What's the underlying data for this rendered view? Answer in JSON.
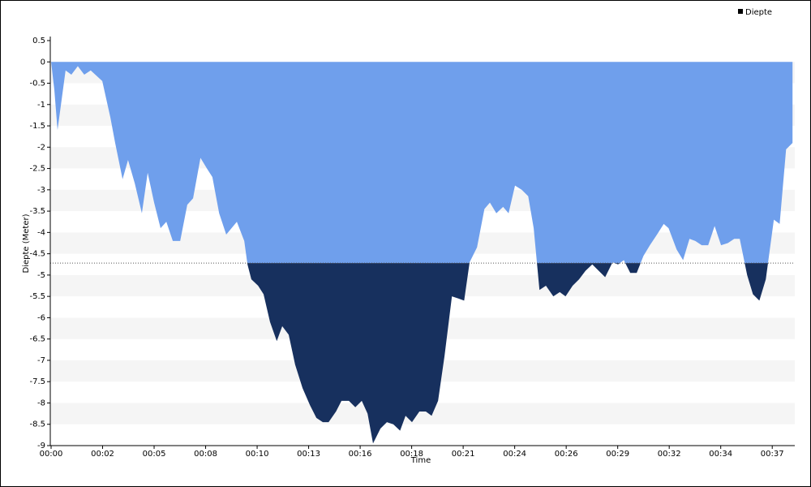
{
  "chart_data": {
    "type": "area",
    "x_label": "Time",
    "y_label": "Diepte (Meter)",
    "x": [
      0,
      10,
      20,
      45,
      63,
      83,
      103,
      123,
      159,
      184,
      199,
      222,
      239,
      260,
      282,
      300,
      320,
      340,
      358,
      378,
      401,
      423,
      441,
      464,
      484,
      501,
      522,
      544,
      577,
      600,
      610,
      622,
      643,
      660,
      680,
      701,
      718,
      738,
      758,
      781,
      804,
      824,
      844,
      862,
      885,
      902,
      925,
      945,
      965,
      983,
      1000,
      1023,
      1043,
      1063,
      1084,
      1101,
      1121,
      1144,
      1164,
      1182,
      1202,
      1222,
      1245,
      1265,
      1283,
      1300,
      1323,
      1346,
      1363,
      1383,
      1404,
      1421,
      1441,
      1462,
      1482,
      1499,
      1517,
      1537,
      1560,
      1580,
      1598,
      1620,
      1640,
      1660,
      1681,
      1701,
      1721,
      1744,
      1761,
      1779,
      1799,
      1819,
      1840,
      1860,
      1882,
      1903,
      1918,
      1943,
      1963,
      1983,
      2001,
      2021,
      2041,
      2061,
      2081,
      2102,
      2122,
      2139,
      2162,
      2180,
      2200,
      2220,
      2245,
      2263,
      2283,
      2303
    ],
    "series": [
      {
        "name": "Diepte",
        "color": "#6f9fec",
        "values": [
          0,
          -0.65,
          -1.6,
          -0.2,
          -0.3,
          -0.1,
          -0.3,
          -0.2,
          -0.45,
          -1.3,
          -1.9,
          -2.75,
          -2.3,
          -2.85,
          -3.55,
          -2.6,
          -3.3,
          -3.9,
          -3.75,
          -4.2,
          -4.2,
          -3.35,
          -3.2,
          -2.25,
          -2.5,
          -2.7,
          -3.55,
          -4.05,
          -3.75,
          -4.2,
          -4.75,
          -5.1,
          -5.25,
          -5.45,
          -6.1,
          -6.55,
          -6.2,
          -6.4,
          -7.1,
          -7.65,
          -8.05,
          -8.35,
          -8.45,
          -8.45,
          -8.2,
          -7.95,
          -7.95,
          -8.1,
          -7.95,
          -8.25,
          -8.95,
          -8.6,
          -8.45,
          -8.5,
          -8.65,
          -8.3,
          -8.45,
          -8.2,
          -8.2,
          -8.3,
          -7.95,
          -6.9,
          -5.5,
          -5.55,
          -5.6,
          -4.7,
          -4.35,
          -3.45,
          -3.3,
          -3.55,
          -3.4,
          -3.55,
          -2.9,
          -3.0,
          -3.15,
          -3.9,
          -5.35,
          -5.25,
          -5.5,
          -5.4,
          -5.5,
          -5.25,
          -5.1,
          -4.9,
          -4.75,
          -4.9,
          -5.05,
          -4.7,
          -4.75,
          -4.65,
          -4.95,
          -4.95,
          -4.55,
          -4.3,
          -4.05,
          -3.8,
          -3.9,
          -4.4,
          -4.65,
          -4.15,
          -4.2,
          -4.3,
          -4.3,
          -3.85,
          -4.3,
          -4.25,
          -4.15,
          -4.15,
          -5.0,
          -5.45,
          -5.6,
          -5.1,
          -3.7,
          -3.8,
          -2.05,
          -1.9
        ]
      }
    ],
    "threshold": -4.72,
    "threshold_color": "#17305e",
    "xlim": [
      0,
      2310
    ],
    "ylim": [
      -9,
      0.5
    ],
    "xticks": [
      {
        "value": 0,
        "label": "00:00"
      },
      {
        "value": 160,
        "label": "00:02"
      },
      {
        "value": 320,
        "label": "00:05"
      },
      {
        "value": 480,
        "label": "00:08"
      },
      {
        "value": 640,
        "label": "00:10"
      },
      {
        "value": 800,
        "label": "00:13"
      },
      {
        "value": 960,
        "label": "00:16"
      },
      {
        "value": 1120,
        "label": "00:18"
      },
      {
        "value": 1280,
        "label": "00:21"
      },
      {
        "value": 1440,
        "label": "00:24"
      },
      {
        "value": 1600,
        "label": "00:26"
      },
      {
        "value": 1760,
        "label": "00:29"
      },
      {
        "value": 1920,
        "label": "00:32"
      },
      {
        "value": 2080,
        "label": "00:34"
      },
      {
        "value": 2240,
        "label": "00:37"
      }
    ],
    "yticks": [
      0.5,
      0,
      -0.5,
      -1,
      -1.5,
      -2,
      -2.5,
      -3,
      -3.5,
      -4,
      -4.5,
      -5,
      -5.5,
      -6,
      -6.5,
      -7,
      -7.5,
      -8,
      -8.5,
      -9
    ],
    "grid": true,
    "legend": "top-right"
  }
}
